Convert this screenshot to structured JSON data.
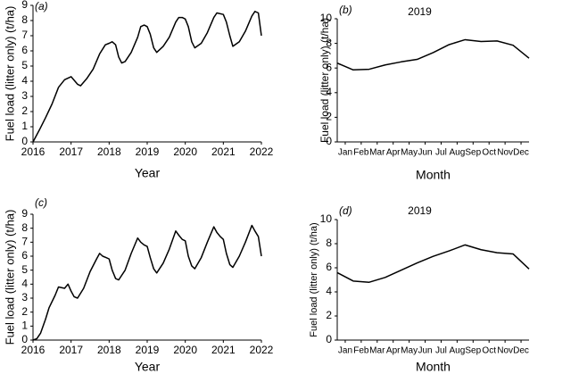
{
  "chart_data": [
    {
      "type": "line",
      "panel_label": "(a)",
      "x_label": "Year",
      "y_label": "Fuel load (litter only) (t/ha)",
      "color": "#000000",
      "x": [
        2016.0,
        2016.17,
        2016.33,
        2016.5,
        2016.67,
        2016.83,
        2017.0,
        2017.17,
        2017.25,
        2017.42,
        2017.58,
        2017.75,
        2017.9,
        2018.0,
        2018.08,
        2018.17,
        2018.25,
        2018.33,
        2018.42,
        2018.58,
        2018.75,
        2018.83,
        2018.92,
        2019.0,
        2019.08,
        2019.17,
        2019.25,
        2019.42,
        2019.58,
        2019.75,
        2019.83,
        2019.92,
        2020.0,
        2020.08,
        2020.17,
        2020.25,
        2020.42,
        2020.58,
        2020.75,
        2020.83,
        2021.0,
        2021.08,
        2021.17,
        2021.25,
        2021.42,
        2021.58,
        2021.75,
        2021.83,
        2021.92,
        2022.0
      ],
      "values": [
        0,
        0.8,
        1.6,
        2.5,
        3.6,
        4.1,
        4.3,
        3.8,
        3.7,
        4.2,
        4.8,
        5.8,
        6.4,
        6.5,
        6.6,
        6.4,
        5.6,
        5.2,
        5.3,
        5.9,
        6.9,
        7.6,
        7.7,
        7.6,
        7.1,
        6.2,
        5.9,
        6.3,
        6.9,
        7.9,
        8.2,
        8.2,
        8.1,
        7.6,
        6.6,
        6.2,
        6.5,
        7.2,
        8.2,
        8.5,
        8.4,
        7.9,
        7.0,
        6.3,
        6.6,
        7.3,
        8.3,
        8.6,
        8.5,
        7.0
      ],
      "xlim": [
        2016,
        2022
      ],
      "xticks": [
        2016,
        2017,
        2018,
        2019,
        2020,
        2021,
        2022
      ],
      "ylim": [
        0,
        9
      ],
      "yticks": [
        0,
        1,
        2,
        3,
        4,
        5,
        6,
        7,
        8,
        9
      ]
    },
    {
      "type": "line",
      "panel_label": "(b)",
      "title": "2019",
      "x_label": "Month",
      "y_label": "Fuel load (litter only) (t/ha)",
      "color": "#000000",
      "x": [
        0,
        1,
        2,
        3,
        4,
        5,
        6,
        7,
        8,
        9,
        10,
        11,
        12
      ],
      "values": [
        6.4,
        5.85,
        5.9,
        6.25,
        6.5,
        6.7,
        7.25,
        7.9,
        8.3,
        8.15,
        8.2,
        7.85,
        6.8
      ],
      "xlim": [
        0,
        12
      ],
      "xticks": [
        {
          "value": 0.5,
          "label": "Jan"
        },
        {
          "value": 1.5,
          "label": "Feb"
        },
        {
          "value": 2.5,
          "label": "Mar"
        },
        {
          "value": 3.5,
          "label": "Apr"
        },
        {
          "value": 4.5,
          "label": "May"
        },
        {
          "value": 5.5,
          "label": "Jun"
        },
        {
          "value": 6.5,
          "label": "Jul"
        },
        {
          "value": 7.5,
          "label": "Aug"
        },
        {
          "value": 8.5,
          "label": "Sep"
        },
        {
          "value": 9.5,
          "label": "Oct"
        },
        {
          "value": 10.5,
          "label": "Nov"
        },
        {
          "value": 11.5,
          "label": "Dec"
        }
      ],
      "ylim": [
        0,
        10
      ],
      "yticks": [
        0,
        2,
        4,
        6,
        8,
        10
      ]
    },
    {
      "type": "line",
      "panel_label": "(c)",
      "x_label": "Year",
      "y_label": "Fuel load (litter only) (t/ha)",
      "color": "#000000",
      "x": [
        2016.0,
        2016.1,
        2016.2,
        2016.33,
        2016.42,
        2016.58,
        2016.67,
        2016.83,
        2016.92,
        2017.0,
        2017.08,
        2017.17,
        2017.33,
        2017.5,
        2017.67,
        2017.75,
        2017.83,
        2017.92,
        2018.0,
        2018.08,
        2018.17,
        2018.25,
        2018.42,
        2018.58,
        2018.75,
        2018.83,
        2018.92,
        2019.0,
        2019.08,
        2019.17,
        2019.25,
        2019.42,
        2019.58,
        2019.75,
        2019.83,
        2019.92,
        2020.0,
        2020.08,
        2020.17,
        2020.25,
        2020.42,
        2020.58,
        2020.75,
        2020.83,
        2020.92,
        2021.0,
        2021.08,
        2021.17,
        2021.25,
        2021.42,
        2021.58,
        2021.75,
        2021.83,
        2021.92,
        2022.0
      ],
      "values": [
        0,
        0.1,
        0.5,
        1.5,
        2.3,
        3.2,
        3.8,
        3.7,
        4.0,
        3.5,
        3.1,
        3.0,
        3.7,
        4.9,
        5.8,
        6.2,
        6.0,
        5.9,
        5.8,
        5.0,
        4.4,
        4.3,
        5.0,
        6.2,
        7.3,
        7.0,
        6.8,
        6.7,
        5.9,
        5.1,
        4.8,
        5.5,
        6.5,
        7.8,
        7.5,
        7.2,
        7.1,
        6.0,
        5.3,
        5.1,
        5.9,
        7.0,
        8.1,
        7.7,
        7.4,
        7.2,
        6.2,
        5.4,
        5.2,
        6.0,
        7.0,
        8.2,
        7.8,
        7.4,
        6.0
      ],
      "xlim": [
        2016,
        2022
      ],
      "xticks": [
        2016,
        2017,
        2018,
        2019,
        2020,
        2021,
        2022
      ],
      "ylim": [
        0,
        9
      ],
      "yticks": [
        0,
        1,
        2,
        3,
        4,
        5,
        6,
        7,
        8,
        9
      ]
    },
    {
      "type": "line",
      "panel_label": "(d)",
      "title": "2019",
      "x_label": "Month",
      "y_label": "Fuel load (litter only) (t/ha)",
      "color": "#000000",
      "x": [
        0,
        1,
        2,
        3,
        4,
        5,
        6,
        7,
        8,
        9,
        10,
        11,
        12
      ],
      "values": [
        5.6,
        4.9,
        4.8,
        5.2,
        5.8,
        6.4,
        6.95,
        7.4,
        7.9,
        7.5,
        7.25,
        7.15,
        5.9
      ],
      "xlim": [
        0,
        12
      ],
      "xticks": [
        {
          "value": 0.5,
          "label": "Jan"
        },
        {
          "value": 1.5,
          "label": "Feb"
        },
        {
          "value": 2.5,
          "label": "Mar"
        },
        {
          "value": 3.5,
          "label": "Apr"
        },
        {
          "value": 4.5,
          "label": "May"
        },
        {
          "value": 5.5,
          "label": "Jun"
        },
        {
          "value": 6.5,
          "label": "Jul"
        },
        {
          "value": 7.5,
          "label": "Aug"
        },
        {
          "value": 8.5,
          "label": "Sep"
        },
        {
          "value": 9.5,
          "label": "Oct"
        },
        {
          "value": 10.5,
          "label": "Nov"
        },
        {
          "value": 11.5,
          "label": "Dec"
        }
      ],
      "ylim": [
        0,
        10
      ],
      "yticks": [
        0,
        2,
        4,
        6,
        8,
        10
      ]
    }
  ]
}
